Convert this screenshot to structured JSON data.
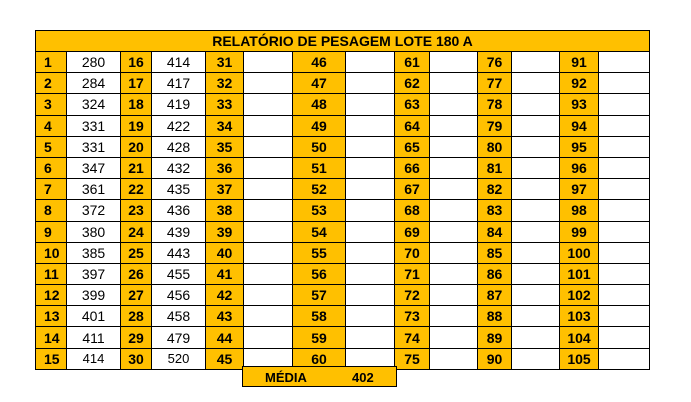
{
  "title": "RELATÓRIO DE PESAGEM LOTE 180 A",
  "rows": [
    {
      "i": [
        "1",
        "16",
        "31",
        "46",
        "61",
        "76",
        "91"
      ],
      "v": [
        "280",
        "414",
        "",
        "",
        "",
        "",
        ""
      ]
    },
    {
      "i": [
        "2",
        "17",
        "32",
        "47",
        "62",
        "77",
        "92"
      ],
      "v": [
        "284",
        "417",
        "",
        "",
        "",
        "",
        ""
      ]
    },
    {
      "i": [
        "3",
        "18",
        "33",
        "48",
        "63",
        "78",
        "93"
      ],
      "v": [
        "324",
        "419",
        "",
        "",
        "",
        "",
        ""
      ]
    },
    {
      "i": [
        "4",
        "19",
        "34",
        "49",
        "64",
        "79",
        "94"
      ],
      "v": [
        "331",
        "422",
        "",
        "",
        "",
        "",
        ""
      ]
    },
    {
      "i": [
        "5",
        "20",
        "35",
        "50",
        "65",
        "80",
        "95"
      ],
      "v": [
        "331",
        "428",
        "",
        "",
        "",
        "",
        ""
      ]
    },
    {
      "i": [
        "6",
        "21",
        "36",
        "51",
        "66",
        "81",
        "96"
      ],
      "v": [
        "347",
        "432",
        "",
        "",
        "",
        "",
        ""
      ]
    },
    {
      "i": [
        "7",
        "22",
        "37",
        "52",
        "67",
        "82",
        "97"
      ],
      "v": [
        "361",
        "435",
        "",
        "",
        "",
        "",
        ""
      ]
    },
    {
      "i": [
        "8",
        "23",
        "38",
        "53",
        "68",
        "83",
        "98"
      ],
      "v": [
        "372",
        "436",
        "",
        "",
        "",
        "",
        ""
      ]
    },
    {
      "i": [
        "9",
        "24",
        "39",
        "54",
        "69",
        "84",
        "99"
      ],
      "v": [
        "380",
        "439",
        "",
        "",
        "",
        "",
        ""
      ]
    },
    {
      "i": [
        "10",
        "25",
        "40",
        "55",
        "70",
        "85",
        "100"
      ],
      "v": [
        "385",
        "443",
        "",
        "",
        "",
        "",
        ""
      ]
    },
    {
      "i": [
        "11",
        "26",
        "41",
        "56",
        "71",
        "86",
        "101"
      ],
      "v": [
        "397",
        "455",
        "",
        "",
        "",
        "",
        ""
      ]
    },
    {
      "i": [
        "12",
        "27",
        "42",
        "57",
        "72",
        "87",
        "102"
      ],
      "v": [
        "399",
        "456",
        "",
        "",
        "",
        "",
        ""
      ]
    },
    {
      "i": [
        "13",
        "28",
        "43",
        "58",
        "73",
        "88",
        "103"
      ],
      "v": [
        "401",
        "458",
        "",
        "",
        "",
        "",
        ""
      ]
    },
    {
      "i": [
        "14",
        "29",
        "44",
        "59",
        "74",
        "89",
        "104"
      ],
      "v": [
        "411",
        "479",
        "",
        "",
        "",
        "",
        ""
      ]
    },
    {
      "i": [
        "15",
        "30",
        "45",
        "60",
        "75",
        "90",
        "105"
      ],
      "v": [
        "414",
        "520",
        "",
        "",
        "",
        "",
        ""
      ]
    }
  ],
  "summary": {
    "label": "MÉDIA",
    "value": "402"
  }
}
